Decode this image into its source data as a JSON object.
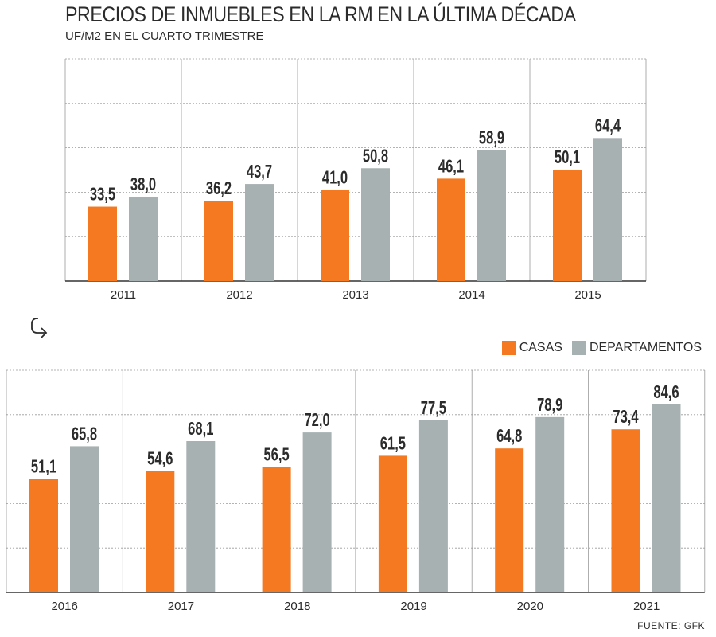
{
  "header": {
    "title": "PRECIOS DE INMUEBLES EN LA RM EN LA ÚLTIMA DÉCADA",
    "subtitle": "UF/M2 EN EL CUARTO TRIMESTRE"
  },
  "legend": {
    "casas_label": "CASAS",
    "departamentos_label": "DEPARTAMENTOS"
  },
  "footer": {
    "source": "FUENTE: GFK"
  },
  "colors": {
    "casas": "#f47920",
    "departamentos": "#a7b1b2",
    "grid": "#9a9a9a",
    "axis": "#333333"
  },
  "icons": {
    "turn": "turn-arrow-icon"
  },
  "chart_data": [
    {
      "type": "bar",
      "categories": [
        "2011",
        "2012",
        "2013",
        "2014",
        "2015"
      ],
      "series": [
        {
          "name": "CASAS",
          "values": [
            33.5,
            36.2,
            41.0,
            46.1,
            50.1
          ],
          "labels": [
            "33,5",
            "36,2",
            "41,0",
            "46,1",
            "50,1"
          ]
        },
        {
          "name": "DEPARTAMENTOS",
          "values": [
            38.0,
            43.7,
            50.8,
            58.9,
            64.4
          ],
          "labels": [
            "38,0",
            "43,7",
            "50,8",
            "58,9",
            "64,4"
          ]
        }
      ],
      "ylim": [
        0,
        100
      ],
      "grid": true
    },
    {
      "type": "bar",
      "categories": [
        "2016",
        "2017",
        "2018",
        "2019",
        "2020",
        "2021"
      ],
      "series": [
        {
          "name": "CASAS",
          "values": [
            51.1,
            54.6,
            56.5,
            61.5,
            64.8,
            73.4
          ],
          "labels": [
            "51,1",
            "54,6",
            "56,5",
            "61,5",
            "64,8",
            "73,4"
          ]
        },
        {
          "name": "DEPARTAMENTOS",
          "values": [
            65.8,
            68.1,
            72.0,
            77.5,
            78.9,
            84.6
          ],
          "labels": [
            "65,8",
            "68,1",
            "72,0",
            "77,5",
            "78,9",
            "84,6"
          ]
        }
      ],
      "ylim": [
        0,
        100
      ],
      "grid": true
    }
  ]
}
